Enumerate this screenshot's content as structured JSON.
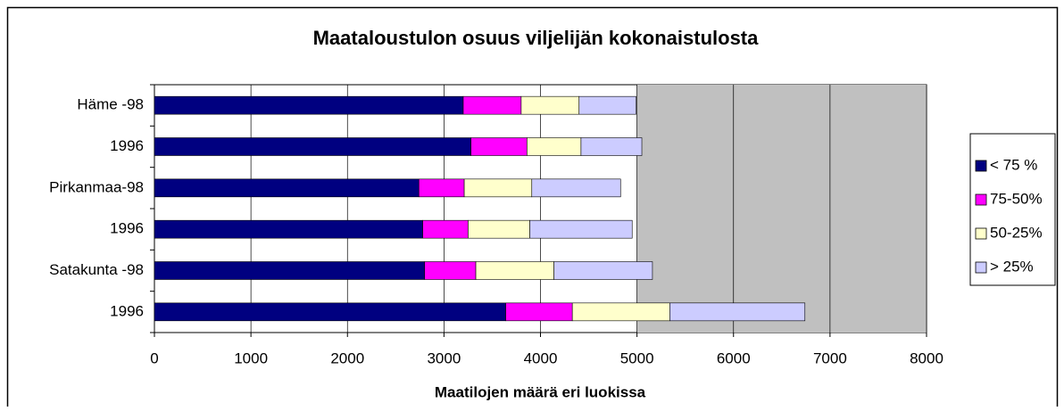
{
  "chart_data": {
    "type": "stacked-bar-horizontal",
    "title": "Maataloustulon osuus viljelijän kokonaistulosta",
    "x_label": "Maatilojen määrä eri luokissa",
    "categories": [
      "Häme -98",
      "1996",
      "Pirkanmaa-98",
      "1996",
      "Satakunta -98",
      "1996"
    ],
    "series": [
      {
        "name": "< 75 %",
        "color": "#000080",
        "values": [
          3200,
          3280,
          2740,
          2780,
          2800,
          3640
        ]
      },
      {
        "name": "75-50%",
        "color": "#ff00ff",
        "values": [
          600,
          580,
          470,
          470,
          530,
          690
        ]
      },
      {
        "name": "50-25%",
        "color": "#ffffcc",
        "values": [
          600,
          560,
          700,
          640,
          810,
          1010
        ]
      },
      {
        "name": "> 25%",
        "color": "#ccccff",
        "values": [
          590,
          630,
          920,
          1060,
          1020,
          1400
        ]
      }
    ],
    "xlim": [
      0,
      8000
    ],
    "xticks": [
      0,
      1000,
      2000,
      3000,
      4000,
      5000,
      6000,
      7000,
      8000
    ],
    "grid": true,
    "legend": "right"
  }
}
